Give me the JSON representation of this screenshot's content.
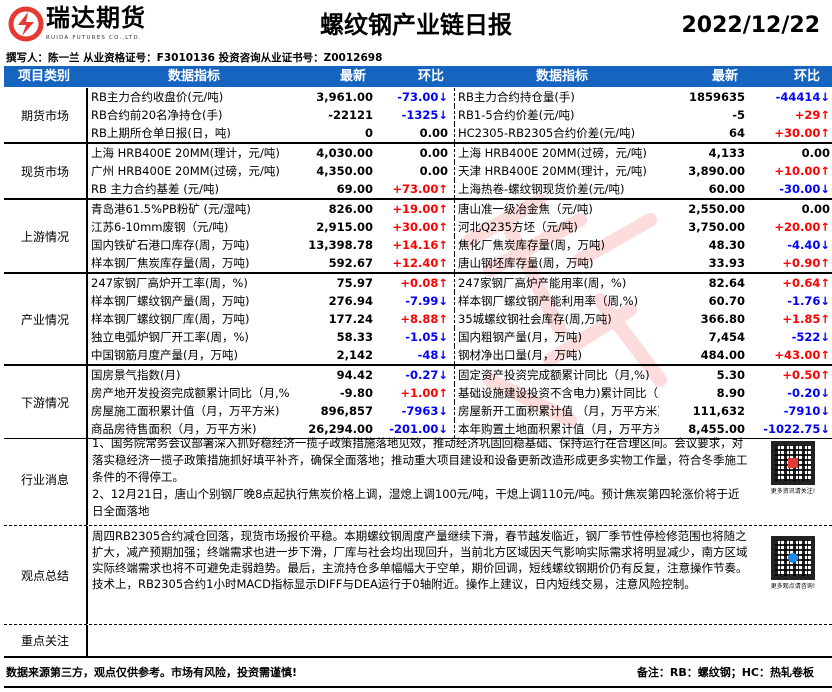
{
  "header": {
    "brand": "瑞达期货",
    "brand_en": "RUIDA FUTURES CO.,LTD.",
    "title": "螺纹钢产业链日报",
    "date": "2022/12/22",
    "author_line": "撰写人：陈一兰  从业资格证号：F3010136   投资咨询从业证书号：Z0012698",
    "logo_color": "#e53935"
  },
  "table_header": {
    "category": "项目类别",
    "indicator": "数据指标",
    "latest": "最新",
    "change": "环比",
    "indicator2": "数据指标",
    "latest2": "最新",
    "change2": "环比",
    "bg": "#1565c0"
  },
  "colors": {
    "up": "#ff0000",
    "down": "#0000ff"
  },
  "sections": [
    {
      "category": "期货市场",
      "rows": [
        [
          "RB主力合约收盘价(元/吨)",
          "3,961.00",
          "-73.00↓",
          "RB主力合约持仓量(手)",
          "1859635",
          "-44414↓"
        ],
        [
          "RB合约前20名净持仓(手)",
          "-22121",
          "-1325↓",
          "RB1-5合约价差(元/吨)",
          "-5",
          "+29↑"
        ],
        [
          "RB上期所仓单日报(日，吨)",
          "0",
          "0.00",
          "HC2305-RB2305合约价差(元/吨)",
          "64",
          "+30.00↑"
        ]
      ]
    },
    {
      "category": "现货市场",
      "rows": [
        [
          "上海 HRB400E 20MM(理计，元/吨)",
          "4,030.00",
          "0.00",
          "上海 HRB400E 20MM(过磅，元/吨)",
          "4,133",
          "0.00"
        ],
        [
          "广州 HRB400E 20MM(过磅，元/吨)",
          "4,350.00",
          "0.00",
          "天津 HRB400E 20MM(理计，元/吨)",
          "3,890.00",
          "+10.00↑"
        ],
        [
          "RB 主力合约基差 (元/吨)",
          "69.00",
          "+73.00↑",
          "上海热卷-螺纹钢现货价差(元/吨)",
          "60.00",
          "-30.00↓"
        ]
      ]
    },
    {
      "category": "上游情况",
      "rows": [
        [
          "青岛港61.5%PB粉矿 (元/湿吨)",
          "826.00",
          "+19.00↑",
          "唐山准一级冶金焦（元/吨)",
          "2,550.00",
          "0.00"
        ],
        [
          "江苏6-10mm废钢（元/吨)",
          "2,915.00",
          "+30.00↑",
          "河北Q235方坯（元/吨)",
          "3,750.00",
          "+20.00↑"
        ],
        [
          "国内铁矿石港口库存(周，万吨)",
          "13,398.78",
          "+14.16↑",
          "焦化厂焦炭库存量(周，万吨)",
          "48.30",
          "-4.40↓"
        ],
        [
          "样本钢厂焦炭库存量(周，万吨)",
          "592.67",
          "+12.40↑",
          "唐山钢坯库存量(周，万吨)",
          "33.93",
          "+0.90↑"
        ]
      ]
    },
    {
      "category": "产业情况",
      "rows": [
        [
          "247家钢厂高炉开工率(周，%)",
          "75.97",
          "+0.08↑",
          "247家钢厂高炉产能用率(周，%)",
          "82.64",
          "+0.64↑"
        ],
        [
          "样本钢厂螺纹钢产量(周，万吨)",
          "276.94",
          "-7.99↓",
          "样本钢厂螺纹钢产能利用率（周,%)",
          "60.70",
          "-1.76↓"
        ],
        [
          "样本钢厂螺纹钢厂库(周，万吨)",
          "177.24",
          "+8.88↑",
          "35城螺纹钢社会库存(周,万吨)",
          "366.80",
          "+1.85↑"
        ],
        [
          "独立电弧炉钢厂开工率(周，%)",
          "58.33",
          "-1.05↓",
          "国内粗钢产量(月，万吨)",
          "7,454",
          "-522↓"
        ],
        [
          "中国钢筋月度产量(月，万吨)",
          "2,142",
          "-48↓",
          "钢材净出口量(月，万吨)",
          "484.00",
          "+43.00↑"
        ]
      ]
    },
    {
      "category": "下游情况",
      "rows": [
        [
          "国房景气指数(月)",
          "94.42",
          "-0.27↓",
          "固定资产投资完成额累计同比（月,%)",
          "5.30",
          "+0.50↑"
        ],
        [
          "房产地开发投资完成额累计同比（月,%)",
          "-9.80",
          "+1.00↑",
          "基础设施建设投资不含电力)累计同比（月,%)",
          "8.90",
          "-0.20↓"
        ],
        [
          "房屋施工面积累计值（月，万平方米)",
          "896,857",
          "-7963↓",
          "房屋新开工面积累计值 （月，万平方米)",
          "111,632",
          "-7910↓"
        ],
        [
          "商品房待售面积（月，万平方米)",
          "26,294.00",
          "-201.00↓",
          "本年购置土地面积累计值（月，万平方米)",
          "8,455.00",
          "-1022.75↓"
        ]
      ]
    }
  ],
  "news": {
    "category": "行业消息",
    "text": "1、国务院常务会议部署深入抓好稳经济一揽子政策措施落地见效，推动经济巩固回稳基础、保持运行在合理区间。会议要求，对落实稳经济一揽子政策措施抓好填平补齐，确保全面落地；推动重大项目建设和设备更新改造形成更多实物工作量，符合冬季施工条件的不得停工。",
    "text2": "2、12月21日，唐山个别钢厂晚8点起执行焦炭价格上调，湿熄上调100元/吨，干熄上调110元/吨。预计焦炭第四轮涨价将于近日全面落地",
    "qr_caption": "更多资讯请关注!"
  },
  "views": {
    "category": "观点总结",
    "text": "周四RB2305合约减仓回落，现货市场报价平稳。本期螺纹钢周度产量继续下滑，春节越发临近，钢厂季节性停检修范围也将随之扩大，减产预期加强；终端需求也进一步下滑，厂库与社会均出现回升，当前北方区域因天气影响实际需求将明显减少，南方区域实际终端需求也将不可避免走弱趋势。最后，主流持仓多单幅幅大于空单，期价回调，短线螺纹钢期价仍有反复，注意操作节奏。技术上，RB2305合约1小时MACD指标显示DIFF与DEA运行于0轴附近。操作上建议，日内短线交易，注意风险控制。",
    "qr_caption": "更多观点请咨询!"
  },
  "focus": {
    "category": "重点关注",
    "text": ""
  },
  "footer": {
    "disclaimer": "数据来源第三方，观点仅供参考。市场有风险，投资需谨慎!",
    "note": "备注：RB：螺纹钢；HC：热轧卷板"
  },
  "watermark": "瑞达研究"
}
